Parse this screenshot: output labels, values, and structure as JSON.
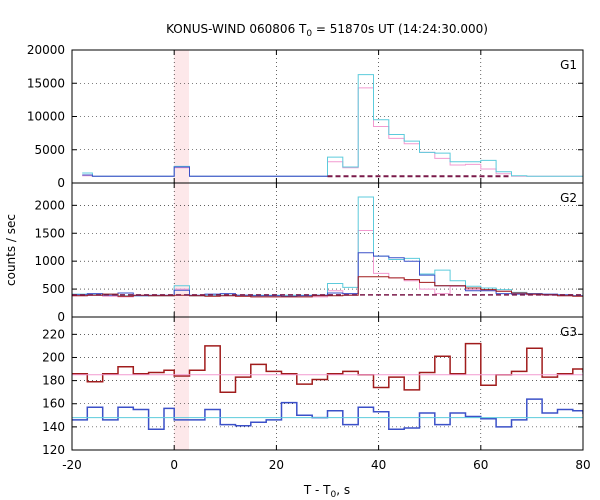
{
  "chart_data": {
    "type": "line",
    "title": "KONUS-WIND 060806 T",
    "title_sub": "0",
    "title_rest": " = 51870s UT (14:24:30.000)",
    "xlabel": "T - T",
    "xlabel_sub": "0",
    "xlabel_rest": ", s",
    "ylabel": "counts / sec",
    "xlim": [
      -20,
      80
    ],
    "xticks": [
      "-20",
      "0",
      "20",
      "40",
      "60",
      "80"
    ],
    "xtick_values": [
      -20,
      0,
      20,
      40,
      60,
      80
    ],
    "grid": true,
    "highlight": {
      "x0": 0,
      "x1": 2.9,
      "color": "#fde8ea"
    },
    "panels": [
      {
        "label": "G1",
        "ylim": [
          0,
          20000
        ],
        "yticks": [
          "0",
          "5000",
          "10000",
          "15000",
          "20000"
        ],
        "ytick_values": [
          0,
          5000,
          10000,
          15000,
          20000
        ],
        "series": [
          {
            "color": "#f29ad0",
            "width": 1,
            "step_x": [
              -18,
              -16,
              -14,
              -12,
              -10,
              -8,
              -6,
              -4,
              -2,
              0,
              3,
              6,
              9,
              12,
              15,
              18,
              21,
              24,
              27,
              30,
              33,
              36,
              39,
              42,
              45,
              48,
              51,
              54,
              57,
              60,
              63,
              66,
              69,
              72,
              75,
              78,
              81
            ],
            "step_y": [
              1100,
              1000,
              1000,
              1000,
              1000,
              1000,
              1000,
              1000,
              1000,
              2300,
              1000,
              1000,
              1000,
              1000,
              1000,
              1000,
              1000,
              1000,
              1000,
              3200,
              2300,
              14300,
              8500,
              6700,
              5900,
              4600,
              3700,
              2700,
              2800,
              2100,
              1400,
              1000,
              1000,
              1000,
              1000,
              1000
            ]
          },
          {
            "color": "#5ccbdc",
            "width": 1,
            "step_x": [
              -18,
              -16,
              -14,
              -12,
              -10,
              -8,
              -6,
              -4,
              -2,
              0,
              3,
              6,
              9,
              12,
              15,
              18,
              21,
              24,
              27,
              30,
              33,
              36,
              39,
              42,
              45,
              48,
              51,
              54,
              57,
              60,
              63,
              66,
              69,
              72,
              75,
              78,
              81
            ],
            "step_y": [
              1500,
              1000,
              1000,
              1000,
              1000,
              1000,
              1000,
              1000,
              1000,
              2500,
              1000,
              1000,
              1000,
              1000,
              1000,
              1000,
              1000,
              1000,
              1000,
              3900,
              2400,
              16300,
              9500,
              7300,
              6300,
              4600,
              4500,
              3200,
              3200,
              3400,
              1700,
              1100,
              1000,
              1000,
              1000,
              1000
            ]
          },
          {
            "color": "#3b50c8",
            "width": 1,
            "step_x": [
              -18,
              -16,
              -14,
              -12,
              -10,
              -8,
              -6,
              -4,
              -2,
              0,
              3,
              6,
              9,
              12,
              15,
              18,
              21,
              24,
              27,
              30
            ],
            "step_y": [
              1200,
              1000,
              1000,
              1000,
              1000,
              1000,
              1000,
              1000,
              1000,
              2400,
              1000,
              1000,
              1000,
              1000,
              1000,
              1000,
              1000,
              1000,
              1000
            ]
          },
          {
            "color": "#7a1a4a",
            "width": 2,
            "dashed": true,
            "line_x": [
              30,
              66
            ],
            "line_y": [
              1000,
              1000
            ]
          }
        ]
      },
      {
        "label": "G2",
        "ylim": [
          0,
          2400
        ],
        "yticks": [
          "0",
          "500",
          "1000",
          "1500",
          "2000"
        ],
        "ytick_values": [
          0,
          500,
          1000,
          1500,
          2000
        ],
        "series": [
          {
            "color": "#f29ad0",
            "width": 1,
            "step_x": [
              -20,
              -17,
              -14,
              -11,
              -8,
              -5,
              -2,
              0,
              3,
              6,
              9,
              12,
              15,
              18,
              21,
              24,
              27,
              30,
              33,
              36,
              39,
              42,
              45,
              48,
              51,
              54,
              57,
              60,
              63,
              66,
              69,
              72,
              75,
              78,
              80
            ],
            "step_y": [
              380,
              390,
              370,
              360,
              390,
              380,
              380,
              500,
              380,
              380,
              380,
              370,
              360,
              360,
              360,
              360,
              360,
              470,
              420,
              1550,
              780,
              700,
              650,
              500,
              420,
              550,
              490,
              480,
              460,
              420,
              400,
              390,
              380,
              380
            ]
          },
          {
            "color": "#5ccbdc",
            "width": 1,
            "step_x": [
              -20,
              -17,
              -14,
              -11,
              -8,
              -5,
              -2,
              0,
              3,
              6,
              9,
              12,
              15,
              18,
              21,
              24,
              27,
              30,
              33,
              36,
              39,
              42,
              45,
              48,
              51,
              54,
              57,
              60,
              63,
              66,
              69,
              72,
              75,
              78,
              80
            ],
            "step_y": [
              410,
              400,
              410,
              380,
              380,
              380,
              380,
              560,
              380,
              390,
              390,
              390,
              390,
              390,
              390,
              390,
              390,
              600,
              530,
              2150,
              1090,
              1030,
              1050,
              770,
              840,
              650,
              550,
              520,
              490,
              440,
              420,
              400,
              390,
              380
            ]
          },
          {
            "color": "#3b50c8",
            "width": 1,
            "step_x": [
              -20,
              -17,
              -14,
              -11,
              -8,
              -5,
              -2,
              0,
              3,
              6,
              9,
              12,
              15,
              18,
              21,
              24,
              27,
              30,
              33,
              36,
              39,
              42,
              45,
              48,
              51,
              54,
              57,
              60,
              63,
              66,
              69,
              72,
              75,
              78,
              80
            ],
            "step_y": [
              400,
              420,
              390,
              430,
              380,
              390,
              390,
              480,
              390,
              410,
              420,
              390,
              380,
              380,
              370,
              380,
              390,
              430,
              420,
              1150,
              1090,
              1060,
              1000,
              750,
              560,
              560,
              470,
              470,
              420,
              410,
              420,
              410,
              400,
              380
            ]
          },
          {
            "color": "#a01c1c",
            "width": 1,
            "step_x": [
              -20,
              -17,
              -14,
              -11,
              -8,
              -5,
              -2,
              0,
              3,
              6,
              9,
              12,
              15,
              18,
              21,
              24,
              27,
              30,
              33,
              36,
              39,
              42,
              45,
              48,
              51,
              54,
              57,
              60,
              63,
              66,
              69,
              72,
              75,
              78,
              80
            ],
            "step_y": [
              380,
              390,
              410,
              370,
              390,
              380,
              380,
              390,
              380,
              370,
              380,
              370,
              360,
              360,
              360,
              360,
              380,
              380,
              390,
              720,
              720,
              700,
              670,
              620,
              560,
              560,
              520,
              490,
              460,
              430,
              410,
              400,
              380,
              370
            ]
          },
          {
            "color": "#7a1a4a",
            "width": 1.5,
            "dashed": true,
            "line_x": [
              -20,
              80
            ],
            "line_y": [
              395,
              395
            ]
          }
        ]
      },
      {
        "label": "G3",
        "ylim": [
          120,
          235
        ],
        "yticks": [
          "120",
          "140",
          "160",
          "180",
          "200",
          "220"
        ],
        "ytick_values": [
          120,
          140,
          160,
          180,
          200,
          220
        ],
        "series": [
          {
            "color": "#a01c1c",
            "width": 1.5,
            "step_x": [
              -20,
              -17,
              -14,
              -11,
              -8,
              -5,
              -2,
              0,
              3,
              6,
              9,
              12,
              15,
              18,
              21,
              24,
              27,
              30,
              33,
              36,
              39,
              42,
              45,
              48,
              51,
              54,
              57,
              60,
              63,
              66,
              69,
              72,
              75,
              78,
              80
            ],
            "step_y": [
              186,
              179,
              186,
              192,
              186,
              187,
              189,
              184,
              189,
              210,
              170,
              183,
              194,
              188,
              186,
              177,
              181,
              186,
              188,
              185,
              174,
              183,
              172,
              187,
              201,
              186,
              212,
              176,
              185,
              188,
              208,
              183,
              186,
              190,
              187
            ]
          },
          {
            "color": "#3b50c8",
            "width": 1.5,
            "step_x": [
              -20,
              -17,
              -14,
              -11,
              -8,
              -5,
              -2,
              0,
              3,
              6,
              9,
              12,
              15,
              18,
              21,
              24,
              27,
              30,
              33,
              36,
              39,
              42,
              45,
              48,
              51,
              54,
              57,
              60,
              63,
              66,
              69,
              72,
              75,
              78,
              80
            ],
            "step_y": [
              146,
              157,
              146,
              157,
              155,
              138,
              156,
              146,
              146,
              155,
              142,
              141,
              144,
              146,
              161,
              150,
              148,
              154,
              142,
              157,
              153,
              138,
              139,
              152,
              142,
              152,
              149,
              147,
              140,
              146,
              164,
              152,
              155,
              154,
              151
            ]
          },
          {
            "color": "#f29ad0",
            "width": 1,
            "line_x": [
              -20,
              80
            ],
            "line_y": [
              185,
              185
            ]
          },
          {
            "color": "#5ccbdc",
            "width": 1,
            "line_x": [
              -20,
              80
            ],
            "line_y": [
              148,
              148
            ]
          }
        ]
      }
    ]
  }
}
